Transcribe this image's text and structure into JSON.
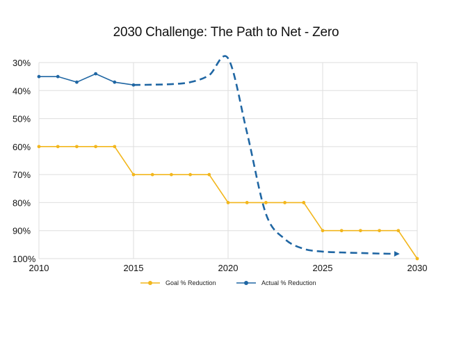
{
  "chart_data": {
    "type": "line",
    "title": "2030 Challenge: The Path to Net - Zero",
    "xlabel": "",
    "ylabel": "",
    "xlim": [
      2010,
      2030
    ],
    "ylim": [
      100,
      30
    ],
    "y_inverted": true,
    "grid": true,
    "x_ticks": [
      2010,
      2015,
      2020,
      2025,
      2030
    ],
    "x_tick_labels": [
      "2010",
      "2015",
      "2020",
      "2025",
      "2030"
    ],
    "y_ticks": [
      30,
      40,
      50,
      60,
      70,
      80,
      90,
      100
    ],
    "y_tick_labels": [
      "30%",
      "40%",
      "50%",
      "60%",
      "70%",
      "80%",
      "90%",
      "100%"
    ],
    "legend_position": "bottom",
    "series": [
      {
        "name": "Goal % Reduction",
        "color": "#F2B61C",
        "style": "solid-step",
        "points": [
          [
            2010,
            60
          ],
          [
            2011,
            60
          ],
          [
            2012,
            60
          ],
          [
            2013,
            60
          ],
          [
            2014,
            60
          ],
          [
            2015,
            70
          ],
          [
            2016,
            70
          ],
          [
            2017,
            70
          ],
          [
            2018,
            70
          ],
          [
            2019,
            70
          ],
          [
            2020,
            80
          ],
          [
            2021,
            80
          ],
          [
            2022,
            80
          ],
          [
            2023,
            80
          ],
          [
            2024,
            80
          ],
          [
            2025,
            90
          ],
          [
            2026,
            90
          ],
          [
            2027,
            90
          ],
          [
            2028,
            90
          ],
          [
            2029,
            90
          ],
          [
            2030,
            100
          ]
        ]
      },
      {
        "name": "Actual % Reduction",
        "color": "#1F66A3",
        "style": "solid-then-dashed",
        "points": [
          [
            2010,
            35
          ],
          [
            2011,
            35
          ],
          [
            2012,
            37
          ],
          [
            2013,
            34
          ],
          [
            2014,
            37
          ],
          [
            2015,
            38
          ]
        ],
        "projection": [
          [
            2015,
            38
          ],
          [
            2016,
            37.9
          ],
          [
            2017,
            37.7
          ],
          [
            2018,
            37
          ],
          [
            2019,
            34.5
          ],
          [
            2020,
            28.5
          ],
          [
            2021,
            55
          ],
          [
            2022,
            84
          ],
          [
            2023,
            93
          ],
          [
            2024,
            96.5
          ],
          [
            2025,
            97.5
          ],
          [
            2026,
            97.8
          ],
          [
            2027,
            98
          ],
          [
            2028,
            98.2
          ],
          [
            2029,
            98.3
          ]
        ]
      }
    ]
  }
}
